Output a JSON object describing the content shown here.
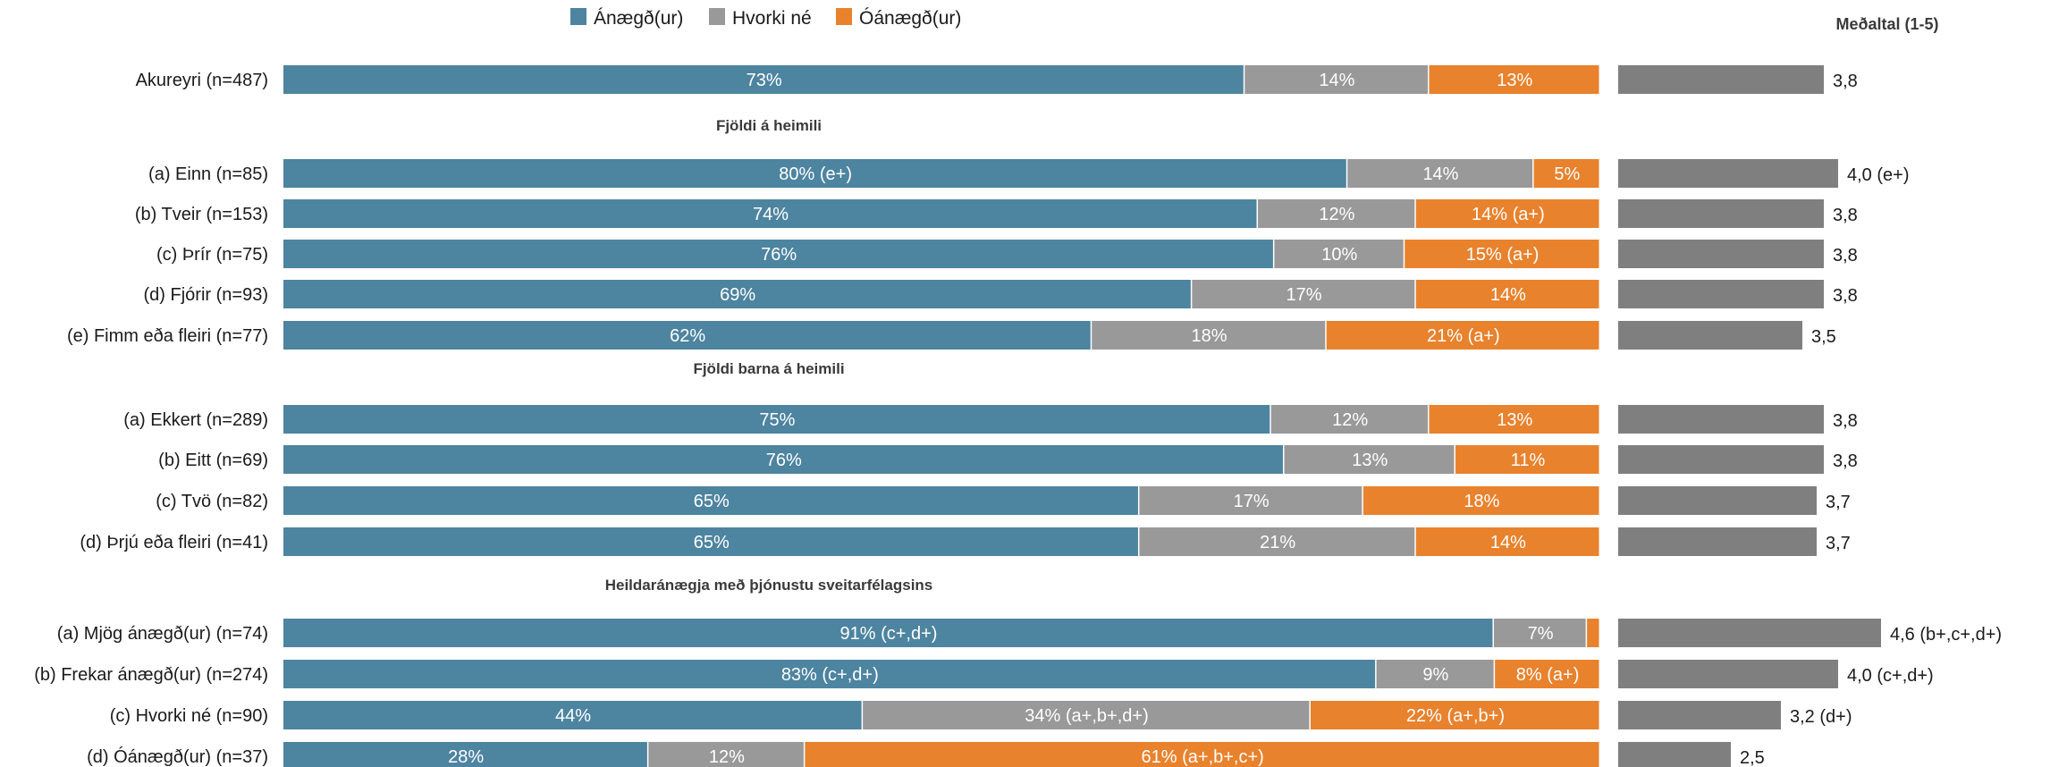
{
  "chart_data": {
    "type": "bar",
    "orientation": "horizontal-stacked-100",
    "legend": {
      "placement": "top",
      "entries": [
        {
          "name": "Ánægð(ur)",
          "color": "#4d84a0"
        },
        {
          "name": "Hvorki né",
          "color": "#999999"
        },
        {
          "name": "Óánægð(ur)",
          "color": "#e8822d"
        }
      ]
    },
    "mean_title": "Meðaltal (1-5)",
    "mean_bar_color": "#7f7f7f",
    "mean_range": [
      1,
      5
    ],
    "groups": [
      {
        "heading": "",
        "rows": [
          {
            "label": "Akureyri (n=487)",
            "values": [
              73,
              14,
              13
            ],
            "seg_labels": [
              "73%",
              "14%",
              "13%"
            ],
            "mean": 3.8,
            "mean_label": "3,8"
          }
        ]
      },
      {
        "heading": "Fjöldi á heimili",
        "rows": [
          {
            "label": "(a) Einn (n=85)",
            "values": [
              80,
              14,
              5
            ],
            "seg_labels": [
              "80% (e+)",
              "14%",
              "5%"
            ],
            "mean": 4.0,
            "mean_label": "4,0 (e+)"
          },
          {
            "label": "(b) Tveir (n=153)",
            "values": [
              74,
              12,
              14
            ],
            "seg_labels": [
              "74%",
              "12%",
              "14% (a+)"
            ],
            "mean": 3.8,
            "mean_label": "3,8"
          },
          {
            "label": "(c) Þrír (n=75)",
            "values": [
              76,
              10,
              15
            ],
            "seg_labels": [
              "76%",
              "10%",
              "15% (a+)"
            ],
            "mean": 3.8,
            "mean_label": "3,8"
          },
          {
            "label": "(d) Fjórir (n=93)",
            "values": [
              69,
              17,
              14
            ],
            "seg_labels": [
              "69%",
              "17%",
              "14%"
            ],
            "mean": 3.8,
            "mean_label": "3,8"
          },
          {
            "label": "(e) Fimm eða fleiri (n=77)",
            "values": [
              62,
              18,
              21
            ],
            "seg_labels": [
              "62%",
              "18%",
              "21% (a+)"
            ],
            "mean": 3.5,
            "mean_label": "3,5"
          }
        ]
      },
      {
        "heading": "Fjöldi barna á heimili",
        "rows": [
          {
            "label": "(a) Ekkert (n=289)",
            "values": [
              75,
              12,
              13
            ],
            "seg_labels": [
              "75%",
              "12%",
              "13%"
            ],
            "mean": 3.8,
            "mean_label": "3,8"
          },
          {
            "label": "(b) Eitt (n=69)",
            "values": [
              76,
              13,
              11
            ],
            "seg_labels": [
              "76%",
              "13%",
              "11%"
            ],
            "mean": 3.8,
            "mean_label": "3,8"
          },
          {
            "label": "(c) Tvö (n=82)",
            "values": [
              65,
              17,
              18
            ],
            "seg_labels": [
              "65%",
              "17%",
              "18%"
            ],
            "mean": 3.7,
            "mean_label": "3,7"
          },
          {
            "label": "(d) Þrjú eða fleiri (n=41)",
            "values": [
              65,
              21,
              14
            ],
            "seg_labels": [
              "65%",
              "21%",
              "14%"
            ],
            "mean": 3.7,
            "mean_label": "3,7"
          }
        ]
      },
      {
        "heading": "Heildaránægja með þjónustu sveitarfélagsins",
        "rows": [
          {
            "label": "(a) Mjög ánægð(ur) (n=74)",
            "values": [
              91,
              7,
              1
            ],
            "seg_labels": [
              "91% (c+,d+)",
              "7%",
              ""
            ],
            "mean": 4.6,
            "mean_label": "4,6 (b+,c+,d+)"
          },
          {
            "label": "(b) Frekar ánægð(ur) (n=274)",
            "values": [
              83,
              9,
              8
            ],
            "seg_labels": [
              "83% (c+,d+)",
              "9%",
              "8% (a+)"
            ],
            "mean": 4.0,
            "mean_label": "4,0 (c+,d+)"
          },
          {
            "label": "(c) Hvorki né (n=90)",
            "values": [
              44,
              34,
              22
            ],
            "seg_labels": [
              "44%",
              "34% (a+,b+,d+)",
              "22% (a+,b+)"
            ],
            "mean": 3.2,
            "mean_label": "3,2 (d+)"
          },
          {
            "label": "(d) Óánægð(ur) (n=37)",
            "values": [
              28,
              12,
              61
            ],
            "seg_labels": [
              "28%",
              "12%",
              "61% (a+,b+,c+)"
            ],
            "mean": 2.5,
            "mean_label": "2,5"
          }
        ]
      }
    ]
  }
}
